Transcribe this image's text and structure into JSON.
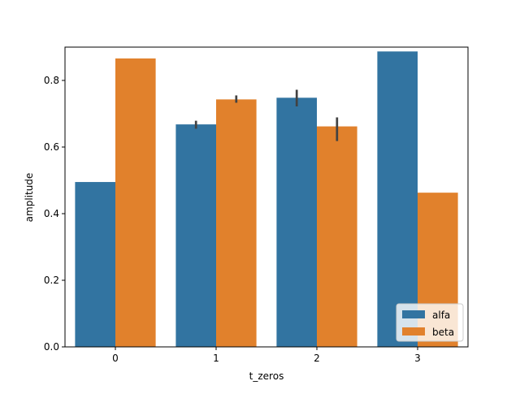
{
  "chart_data": {
    "type": "bar",
    "title": "",
    "xlabel": "t_zeros",
    "ylabel": "amplitude",
    "categories": [
      "0",
      "1",
      "2",
      "3"
    ],
    "ylim": [
      0,
      0.9
    ],
    "yticks": [
      0.0,
      0.2,
      0.4,
      0.6,
      0.8
    ],
    "ytick_labels": [
      "0.0",
      "0.2",
      "0.4",
      "0.6",
      "0.8"
    ],
    "grid": false,
    "legend_position": "lower-right",
    "series": [
      {
        "name": "alfa",
        "color": "#3274a1",
        "values": [
          0.495,
          0.668,
          0.748,
          0.887
        ],
        "error_low": [
          null,
          0.655,
          0.722,
          null
        ],
        "error_high": [
          null,
          0.679,
          0.772,
          null
        ]
      },
      {
        "name": "beta",
        "color": "#e1812c",
        "values": [
          0.866,
          0.743,
          0.662,
          0.463
        ],
        "error_low": [
          null,
          0.733,
          0.618,
          null
        ],
        "error_high": [
          null,
          0.755,
          0.689,
          null
        ]
      }
    ]
  }
}
